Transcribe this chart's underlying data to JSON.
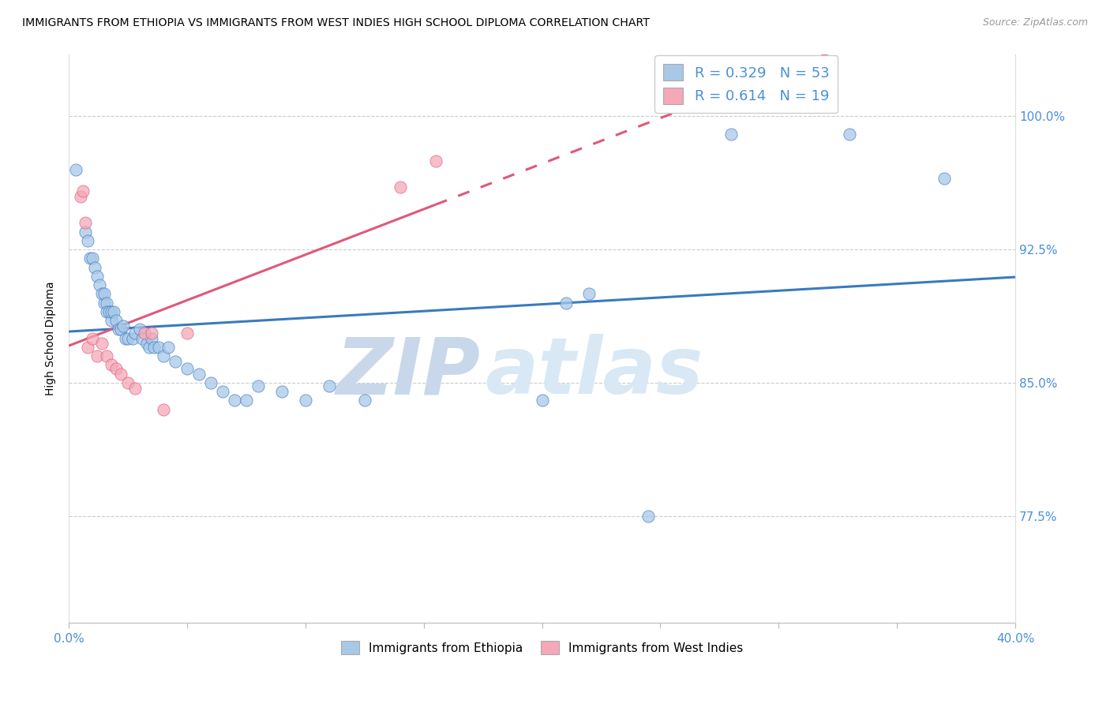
{
  "title": "IMMIGRANTS FROM ETHIOPIA VS IMMIGRANTS FROM WEST INDIES HIGH SCHOOL DIPLOMA CORRELATION CHART",
  "source": "Source: ZipAtlas.com",
  "ylabel": "High School Diploma",
  "ytick_labels": [
    "77.5%",
    "85.0%",
    "92.5%",
    "100.0%"
  ],
  "ytick_values": [
    0.775,
    0.85,
    0.925,
    1.0
  ],
  "xlim": [
    0.0,
    0.4
  ],
  "ylim": [
    0.715,
    1.035
  ],
  "color_ethiopia": "#a8c8e8",
  "color_westindies": "#f4a8b8",
  "trendline_ethiopia": "#3a7abf",
  "trendline_westindies": "#e05878",
  "title_fontsize": 10.5,
  "axis_label_color": "#4a90d9",
  "legend_ethiopia_r": "R = 0.329",
  "legend_ethiopia_n": "N = 53",
  "legend_westindies_r": "R = 0.614",
  "legend_westindies_n": "N = 19",
  "bottom_legend_ethiopia": "Immigrants from Ethiopia",
  "bottom_legend_westindies": "Immigrants from West Indies",
  "ethiopia_x": [
    0.003,
    0.007,
    0.008,
    0.009,
    0.01,
    0.011,
    0.012,
    0.013,
    0.014,
    0.015,
    0.015,
    0.016,
    0.016,
    0.017,
    0.018,
    0.018,
    0.019,
    0.02,
    0.021,
    0.022,
    0.023,
    0.024,
    0.025,
    0.027,
    0.028,
    0.03,
    0.031,
    0.033,
    0.034,
    0.035,
    0.036,
    0.038,
    0.04,
    0.042,
    0.045,
    0.05,
    0.055,
    0.06,
    0.065,
    0.07,
    0.075,
    0.08,
    0.09,
    0.1,
    0.11,
    0.125,
    0.2,
    0.21,
    0.22,
    0.245,
    0.28,
    0.33,
    0.37
  ],
  "ethiopia_y": [
    0.97,
    0.935,
    0.93,
    0.92,
    0.92,
    0.915,
    0.91,
    0.905,
    0.9,
    0.895,
    0.9,
    0.895,
    0.89,
    0.89,
    0.885,
    0.89,
    0.89,
    0.885,
    0.88,
    0.88,
    0.882,
    0.875,
    0.875,
    0.875,
    0.878,
    0.88,
    0.875,
    0.872,
    0.87,
    0.875,
    0.87,
    0.87,
    0.865,
    0.87,
    0.862,
    0.858,
    0.855,
    0.85,
    0.845,
    0.84,
    0.84,
    0.848,
    0.845,
    0.84,
    0.848,
    0.84,
    0.84,
    0.895,
    0.9,
    0.775,
    0.99,
    0.99,
    0.965
  ],
  "westindies_x": [
    0.005,
    0.006,
    0.007,
    0.008,
    0.01,
    0.012,
    0.014,
    0.016,
    0.018,
    0.02,
    0.022,
    0.025,
    0.028,
    0.032,
    0.035,
    0.04,
    0.05,
    0.14,
    0.155
  ],
  "westindies_y": [
    0.955,
    0.958,
    0.94,
    0.87,
    0.875,
    0.865,
    0.872,
    0.865,
    0.86,
    0.858,
    0.855,
    0.85,
    0.847,
    0.878,
    0.878,
    0.835,
    0.878,
    0.96,
    0.975
  ],
  "trendline_eth_x0": 0.0,
  "trendline_eth_x1": 0.4,
  "trendline_wi_x0": 0.0,
  "trendline_wi_x1": 0.4,
  "watermark_zip_color": "#c8d8ea",
  "watermark_atlas_color": "#d8e8f5"
}
